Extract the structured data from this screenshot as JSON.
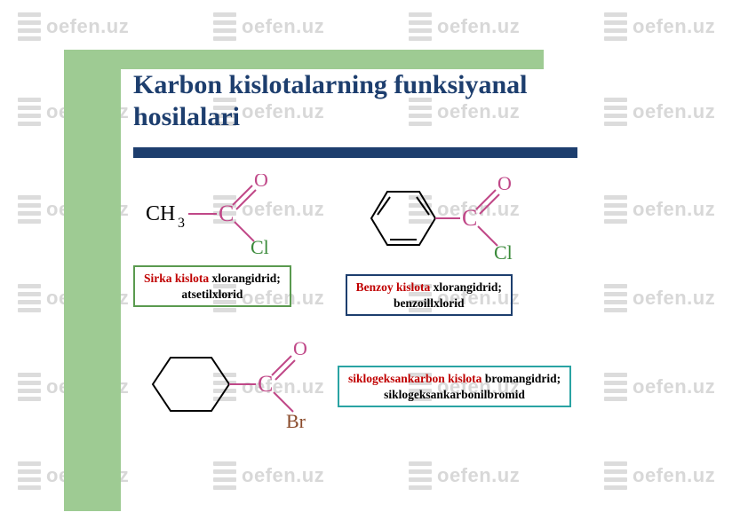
{
  "watermark": "oefen.uz",
  "title_line1": "Karbon kislotalarning funksiyanal",
  "title_line2": "hosilalari",
  "compound1": {
    "label_line1": "Sirka kislota",
    "label_suffix": " xlorangidrid;",
    "label_line2": "atsetilxlorid",
    "structure": {
      "prefix": "CH",
      "sub": "3",
      "carbonyl": "C",
      "oxygen": "O",
      "halogen": "Cl"
    }
  },
  "compound2": {
    "label_line1": "Benzoy kislota",
    "label_suffix": " xlorangidrid;",
    "label_line2": "benzoillxlorid",
    "structure": {
      "carbonyl": "C",
      "oxygen": "O",
      "halogen": "Cl"
    }
  },
  "compound3": {
    "label_line1": "siklogeksankarbon kislota",
    "label_suffix": " bromangidrid;",
    "label_line2": "siklogeksankarbonilbromid",
    "structure": {
      "carbonyl": "C",
      "oxygen": "O",
      "halogen": "Br"
    }
  },
  "colors": {
    "frame_green": "#9ecb93",
    "navy": "#1d3e6e",
    "red_text": "#c00000",
    "green_border": "#5a9a4f",
    "teal_border": "#2aa3a3",
    "watermark_gray": "#d8d8d8",
    "structure_pink": "#c04888",
    "structure_green": "#3a8a3a"
  }
}
